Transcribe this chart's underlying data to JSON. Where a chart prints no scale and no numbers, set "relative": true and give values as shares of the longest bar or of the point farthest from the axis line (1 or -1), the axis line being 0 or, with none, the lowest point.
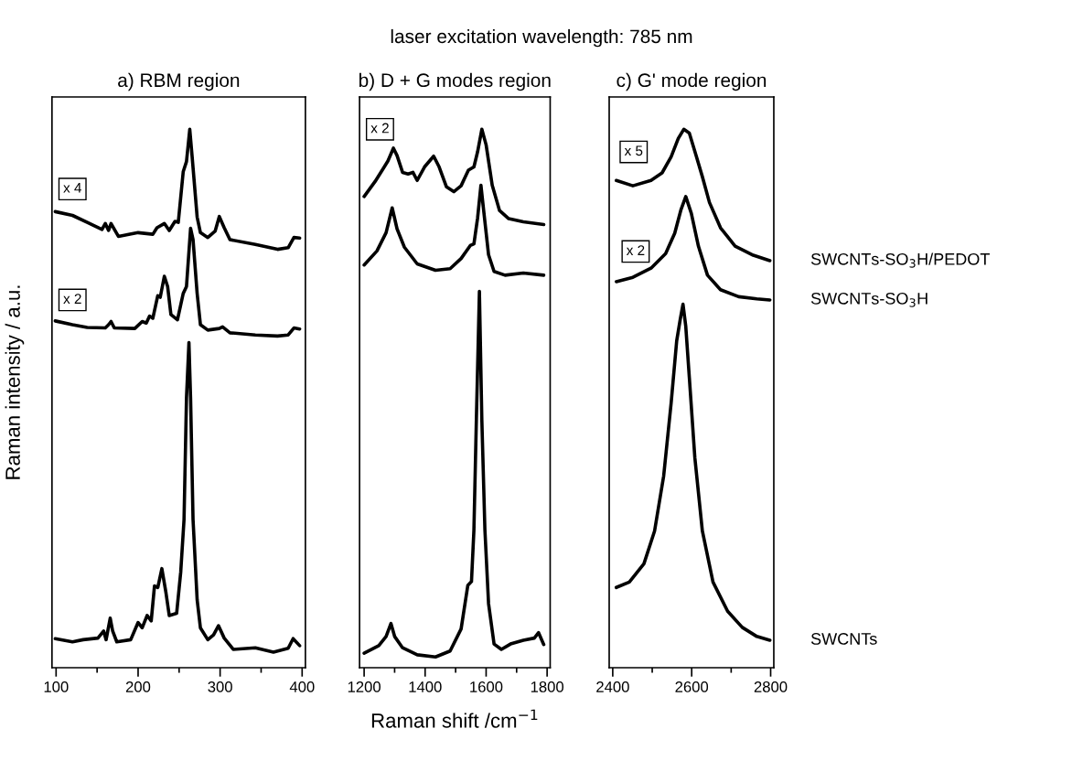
{
  "chart_data": [
    {
      "type": "line",
      "title": "a) RBM region",
      "ylabel": "Raman intensity / a.u.",
      "relative": true,
      "xlim": [
        95,
        404
      ],
      "xticks": [
        100,
        {
          "value": 150,
          "label": null
        },
        200,
        {
          "value": 250,
          "label": null
        },
        300,
        {
          "value": 350,
          "label": null
        },
        400
      ],
      "tick_labels": "x",
      "annotations": [
        "laser excitation wavelength: 785 nm",
        {
          "text": "x 4",
          "x": 120,
          "y": 0.889
        },
        {
          "text": "x 2",
          "x": 120,
          "y": 0.683
        }
      ],
      "series": [
        {
          "color": "#000000",
          "x": [
            99,
            120,
            138,
            156,
            160,
            164,
            167,
            176,
            200,
            218,
            223,
            232,
            238,
            245,
            249,
            255,
            259,
            263,
            266,
            272,
            276,
            285,
            294,
            299,
            305,
            312,
            343,
            370,
            383,
            390,
            397
          ],
          "values": [
            0.847,
            0.84,
            0.827,
            0.814,
            0.825,
            0.812,
            0.825,
            0.801,
            0.808,
            0.805,
            0.817,
            0.825,
            0.812,
            0.829,
            0.827,
            0.921,
            0.94,
            1.0,
            0.947,
            0.837,
            0.808,
            0.799,
            0.811,
            0.838,
            0.817,
            0.795,
            0.786,
            0.777,
            0.78,
            0.799,
            0.798
          ]
        },
        {
          "color": "#000000",
          "x": [
            99,
            120,
            138,
            160,
            164,
            167,
            171,
            196,
            205,
            210,
            214,
            218,
            224,
            227,
            232,
            236,
            240,
            248,
            255,
            259,
            264,
            267,
            272,
            276,
            285,
            299,
            303,
            312,
            343,
            370,
            383,
            390,
            397
          ],
          "values": [
            0.644,
            0.637,
            0.632,
            0.631,
            0.637,
            0.643,
            0.631,
            0.63,
            0.643,
            0.64,
            0.653,
            0.649,
            0.691,
            0.688,
            0.727,
            0.708,
            0.656,
            0.646,
            0.695,
            0.708,
            0.816,
            0.795,
            0.695,
            0.637,
            0.627,
            0.63,
            0.633,
            0.622,
            0.618,
            0.616,
            0.618,
            0.631,
            0.629
          ]
        },
        {
          "color": "#000000",
          "x": [
            99,
            120,
            133,
            151,
            158,
            161,
            166,
            169,
            174,
            191,
            200,
            205,
            211,
            216,
            220,
            224,
            229,
            234,
            238,
            247,
            252,
            256,
            259,
            262,
            264,
            267,
            272,
            276,
            285,
            292,
            298,
            305,
            316,
            343,
            365,
            383,
            389,
            397
          ],
          "values": [
            0.054,
            0.048,
            0.052,
            0.055,
            0.068,
            0.052,
            0.092,
            0.068,
            0.048,
            0.052,
            0.084,
            0.074,
            0.097,
            0.087,
            0.152,
            0.149,
            0.184,
            0.139,
            0.097,
            0.101,
            0.178,
            0.275,
            0.501,
            0.604,
            0.501,
            0.275,
            0.126,
            0.074,
            0.052,
            0.061,
            0.078,
            0.055,
            0.034,
            0.037,
            0.029,
            0.036,
            0.054,
            0.041
          ]
        }
      ]
    },
    {
      "type": "line",
      "title": "b) D + G modes region",
      "xlabel": "Raman shift /cm$^{−1}$",
      "relative": true,
      "xlim": [
        1185,
        1810
      ],
      "xticks": [
        1200,
        {
          "value": 1300,
          "label": null
        },
        1400,
        {
          "value": 1500,
          "label": null
        },
        1600,
        {
          "value": 1700,
          "label": null
        },
        1800
      ],
      "tick_labels": "x",
      "annotations": [
        {
          "text": "x 2",
          "x": 1252,
          "y": 1.0
        }
      ],
      "series": [
        {
          "color": "#000000",
          "x": [
            1200,
            1236,
            1266,
            1278,
            1296,
            1308,
            1326,
            1344,
            1360,
            1374,
            1398,
            1428,
            1446,
            1470,
            1494,
            1518,
            1542,
            1560,
            1572,
            1586,
            1600,
            1620,
            1644,
            1674,
            1722,
            1789
          ],
          "values": [
            0.875,
            0.903,
            0.93,
            0.941,
            0.965,
            0.951,
            0.92,
            0.917,
            0.92,
            0.905,
            0.93,
            0.95,
            0.93,
            0.893,
            0.884,
            0.895,
            0.924,
            0.93,
            0.958,
            1.0,
            0.971,
            0.896,
            0.849,
            0.834,
            0.828,
            0.823
          ]
        },
        {
          "color": "#000000",
          "x": [
            1200,
            1242,
            1272,
            1292,
            1308,
            1332,
            1374,
            1434,
            1482,
            1518,
            1548,
            1560,
            1572,
            1583,
            1592,
            1608,
            1626,
            1662,
            1722,
            1789
          ],
          "values": [
            0.748,
            0.774,
            0.808,
            0.854,
            0.815,
            0.781,
            0.75,
            0.738,
            0.741,
            0.76,
            0.784,
            0.787,
            0.835,
            0.896,
            0.849,
            0.767,
            0.736,
            0.729,
            0.733,
            0.729
          ]
        },
        {
          "color": "#000000",
          "x": [
            1200,
            1248,
            1272,
            1288,
            1300,
            1326,
            1374,
            1434,
            1482,
            1518,
            1540,
            1552,
            1560,
            1568,
            1578,
            1586,
            1596,
            1608,
            1626,
            1650,
            1680,
            1722,
            1758,
            1772,
            1789
          ],
          "values": [
            0.027,
            0.041,
            0.058,
            0.082,
            0.058,
            0.037,
            0.024,
            0.02,
            0.031,
            0.072,
            0.153,
            0.16,
            0.256,
            0.46,
            0.699,
            0.46,
            0.256,
            0.119,
            0.044,
            0.034,
            0.044,
            0.051,
            0.055,
            0.065,
            0.043
          ]
        }
      ]
    },
    {
      "type": "line",
      "title": "c) G' mode region",
      "relative": true,
      "xlim": [
        2391,
        2808
      ],
      "xticks": [
        2400,
        {
          "value": 2500,
          "label": null
        },
        2600,
        {
          "value": 2700,
          "label": null
        },
        2800
      ],
      "tick_labels": "x",
      "annotations": [
        {
          "text": "x 5",
          "x": 2453,
          "y": 0.958
        },
        {
          "text": "x 2",
          "x": 2458,
          "y": 0.773
        }
      ],
      "series": [
        {
          "name": "SWCNTs-SO$_{3}$H/PEDOT",
          "color": "#000000",
          "x": [
            2409,
            2451,
            2497,
            2525,
            2548,
            2566,
            2580,
            2594,
            2608,
            2627,
            2645,
            2673,
            2710,
            2756,
            2798
          ],
          "values": [
            0.905,
            0.895,
            0.905,
            0.919,
            0.949,
            0.983,
            1.0,
            0.993,
            0.959,
            0.912,
            0.864,
            0.817,
            0.783,
            0.766,
            0.756
          ]
        },
        {
          "name": "SWCNTs-SO$_{3}$H",
          "color": "#000000",
          "x": [
            2409,
            2451,
            2497,
            2534,
            2557,
            2573,
            2585,
            2599,
            2617,
            2640,
            2673,
            2719,
            2765,
            2798
          ],
          "values": [
            0.717,
            0.725,
            0.742,
            0.769,
            0.807,
            0.851,
            0.875,
            0.844,
            0.783,
            0.729,
            0.702,
            0.689,
            0.685,
            0.683
          ]
        },
        {
          "name": "SWCNTs",
          "color": "#000000",
          "x": [
            2409,
            2442,
            2479,
            2506,
            2529,
            2548,
            2562,
            2571,
            2578,
            2585,
            2594,
            2608,
            2627,
            2654,
            2691,
            2728,
            2765,
            2798
          ],
          "values": [
            0.149,
            0.159,
            0.193,
            0.254,
            0.356,
            0.492,
            0.607,
            0.647,
            0.675,
            0.634,
            0.539,
            0.39,
            0.254,
            0.159,
            0.105,
            0.075,
            0.058,
            0.051
          ]
        }
      ]
    }
  ]
}
